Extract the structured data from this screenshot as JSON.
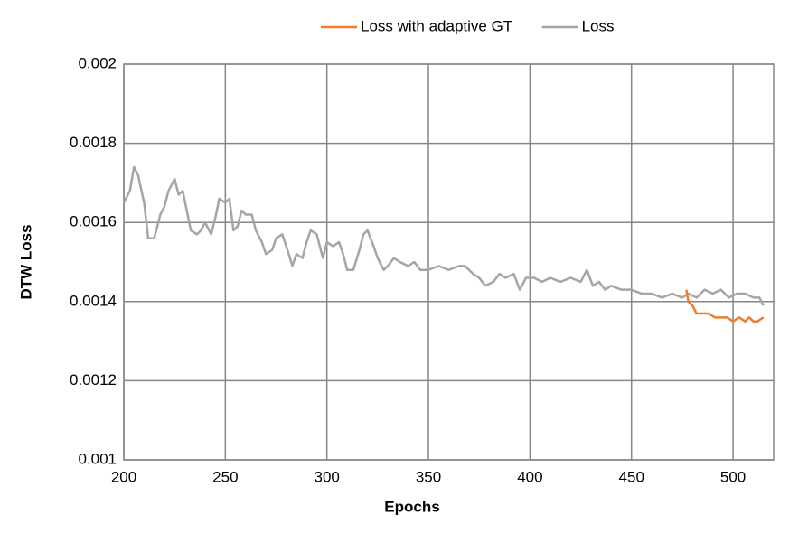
{
  "chart_data": {
    "type": "line",
    "x_label": "Epochs",
    "y_label": "DTW Loss",
    "xlim": [
      200,
      520
    ],
    "xticks": [
      200,
      250,
      300,
      350,
      400,
      450,
      500
    ],
    "ylim": [
      0.001,
      0.002
    ],
    "yticks": [
      0.001,
      0.0012,
      0.0014,
      0.0016,
      0.0018,
      0.002
    ],
    "grid": true,
    "legend": "top",
    "series": [
      {
        "name": "Loss with adaptive GT",
        "color": "#ed7d31",
        "x": [
          477,
          478,
          480,
          482,
          485,
          488,
          491,
          494,
          497,
          500,
          503,
          506,
          508,
          510,
          512,
          515
        ],
        "values": [
          0.00143,
          0.0014,
          0.00139,
          0.00137,
          0.00137,
          0.00137,
          0.00136,
          0.00136,
          0.00136,
          0.00135,
          0.00136,
          0.00135,
          0.00136,
          0.00135,
          0.00135,
          0.00136
        ]
      },
      {
        "name": "Loss",
        "color": "#a5a5a5",
        "x": [
          200,
          203,
          205,
          207,
          210,
          212,
          215,
          218,
          220,
          222,
          225,
          227,
          229,
          231,
          233,
          236,
          238,
          240,
          243,
          245,
          247,
          250,
          252,
          254,
          256,
          258,
          260,
          263,
          265,
          268,
          270,
          273,
          275,
          278,
          280,
          283,
          285,
          288,
          290,
          292,
          295,
          298,
          300,
          303,
          306,
          308,
          310,
          313,
          316,
          318,
          320,
          323,
          325,
          328,
          330,
          333,
          336,
          340,
          343,
          346,
          350,
          355,
          360,
          365,
          368,
          372,
          375,
          378,
          382,
          385,
          388,
          392,
          395,
          398,
          402,
          406,
          410,
          415,
          420,
          425,
          428,
          431,
          434,
          437,
          440,
          445,
          450,
          455,
          460,
          465,
          470,
          475,
          478,
          482,
          486,
          490,
          494,
          498,
          502,
          506,
          510,
          513,
          515
        ],
        "values": [
          0.00165,
          0.00168,
          0.00174,
          0.00172,
          0.00165,
          0.00156,
          0.00156,
          0.00162,
          0.00164,
          0.00168,
          0.00171,
          0.00167,
          0.00168,
          0.00163,
          0.00158,
          0.00157,
          0.00158,
          0.0016,
          0.00157,
          0.00161,
          0.00166,
          0.00165,
          0.00166,
          0.00158,
          0.00159,
          0.00163,
          0.00162,
          0.00162,
          0.00158,
          0.00155,
          0.00152,
          0.00153,
          0.00156,
          0.00157,
          0.00154,
          0.00149,
          0.00152,
          0.00151,
          0.00155,
          0.00158,
          0.00157,
          0.00151,
          0.00155,
          0.00154,
          0.00155,
          0.00152,
          0.00148,
          0.00148,
          0.00153,
          0.00157,
          0.00158,
          0.00154,
          0.00151,
          0.00148,
          0.00149,
          0.00151,
          0.0015,
          0.00149,
          0.0015,
          0.00148,
          0.00148,
          0.00149,
          0.00148,
          0.00149,
          0.00149,
          0.00147,
          0.00146,
          0.00144,
          0.00145,
          0.00147,
          0.00146,
          0.00147,
          0.00143,
          0.00146,
          0.00146,
          0.00145,
          0.00146,
          0.00145,
          0.00146,
          0.00145,
          0.00148,
          0.00144,
          0.00145,
          0.00143,
          0.00144,
          0.00143,
          0.00143,
          0.00142,
          0.00142,
          0.00141,
          0.00142,
          0.00141,
          0.00142,
          0.00141,
          0.00143,
          0.00142,
          0.00143,
          0.00141,
          0.00142,
          0.00142,
          0.00141,
          0.00141,
          0.00139
        ]
      }
    ]
  }
}
